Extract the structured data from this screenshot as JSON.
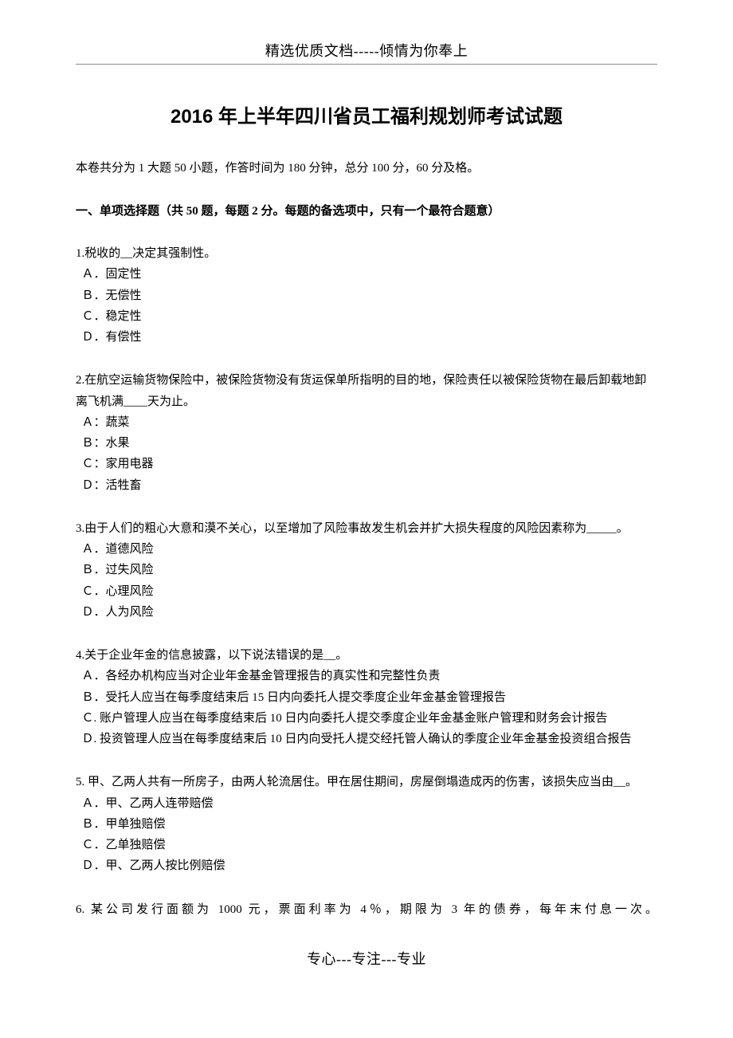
{
  "header": {
    "text": "精选优质文档-----倾情为你奉上"
  },
  "title": "2016 年上半年四川省员工福利规划师考试试题",
  "intro": "本卷共分为 1 大题 50 小题，作答时间为 180 分钟，总分 100 分，60 分及格。",
  "section_header": "一、单项选择题（共 50 题，每题 2 分。每题的备选项中，只有一个最符合题意）",
  "questions": {
    "q1": {
      "text": "1.税收的__决定其强制性。",
      "a": "Ａ．固定性",
      "b": "Ｂ．无偿性",
      "c": "Ｃ．稳定性",
      "d": "Ｄ．有偿性"
    },
    "q2": {
      "text": "2.在航空运输货物保险中，被保险货物没有货运保单所指明的目的地，保险责任以被保险货物在最后卸载地卸离飞机满____天为止。",
      "a": "Ａ：蔬菜",
      "b": "Ｂ：水果",
      "c": "Ｃ：家用电器",
      "d": "Ｄ：活牲畜"
    },
    "q3": {
      "text": "3.由于人们的粗心大意和漠不关心，以至增加了风险事故发生机会并扩大损失程度的风险因素称为_____。",
      "a": "Ａ．道德风险",
      "b": "Ｂ．过失风险",
      "c": "Ｃ．心理风险",
      "d": "Ｄ．人为风险"
    },
    "q4": {
      "text": "4.关于企业年金的信息披露，以下说法错误的是__。",
      "a": "Ａ．各经办机构应当对企业年金基金管理报告的真实性和完整性负责",
      "b": "Ｂ．受托人应当在每季度结束后 15 日内向委托人提交季度企业年金基金管理报告",
      "c": "Ｃ. 账户管理人应当在每季度结束后 10 日内向委托人提交季度企业年金基金账户管理和财务会计报告",
      "d": "Ｄ. 投资管理人应当在每季度结束后 10 日内向受托人提交经托管人确认的季度企业年金基金投资组合报告"
    },
    "q5": {
      "text": "5. 甲、乙两人共有一所房子，由两人轮流居住。甲在居住期间，房屋倒塌造成丙的伤害，该损失应当由__。",
      "a": "Ａ．甲、乙两人连带赔偿",
      "b": "Ｂ．甲单独赔偿",
      "c": "Ｃ．乙单独赔偿",
      "d": "Ｄ．甲、乙两人按比例赔偿"
    },
    "q6": {
      "text": "6. 某公司发行面额为 1000 元，票面利率为 4％，期限为 3 年的债券，每年末付息一次。"
    }
  },
  "footer": "专心---专注---专业"
}
